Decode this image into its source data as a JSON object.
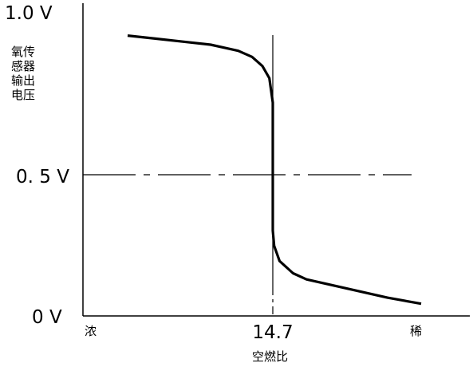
{
  "chart_data": {
    "type": "line",
    "title": "",
    "ylabel_lines": [
      "氧传",
      "感器",
      "输出",
      "电压"
    ],
    "xlabel": "空燃比",
    "y_tick_labels": [
      "1.0 V",
      "0. 5 V",
      "0 V"
    ],
    "y_ticks": [
      1.0,
      0.5,
      0.0
    ],
    "x_tick_labels": [
      "浓",
      "14.7",
      "稀"
    ],
    "ylim": [
      0,
      1.0
    ],
    "grid": false,
    "series": [
      {
        "points": [
          {
            "x": 12.6,
            "y": 0.92
          },
          {
            "x": 13.0,
            "y": 0.91
          },
          {
            "x": 13.4,
            "y": 0.9
          },
          {
            "x": 13.8,
            "y": 0.89
          },
          {
            "x": 14.0,
            "y": 0.88
          },
          {
            "x": 14.2,
            "y": 0.87
          },
          {
            "x": 14.4,
            "y": 0.85
          },
          {
            "x": 14.55,
            "y": 0.82
          },
          {
            "x": 14.65,
            "y": 0.78
          },
          {
            "x": 14.7,
            "y": 0.7
          },
          {
            "x": 14.7,
            "y": 0.28
          },
          {
            "x": 14.72,
            "y": 0.23
          },
          {
            "x": 14.8,
            "y": 0.18
          },
          {
            "x": 15.0,
            "y": 0.14
          },
          {
            "x": 15.2,
            "y": 0.12
          },
          {
            "x": 15.6,
            "y": 0.1
          },
          {
            "x": 16.0,
            "y": 0.08
          },
          {
            "x": 16.4,
            "y": 0.06
          },
          {
            "x": 16.9,
            "y": 0.04
          }
        ]
      }
    ],
    "reference_lines": [
      {
        "axis": "y",
        "value": 0.5,
        "style": "dash-dot"
      },
      {
        "axis": "x",
        "value": 14.7,
        "style": "solid-then-dashed"
      }
    ]
  }
}
